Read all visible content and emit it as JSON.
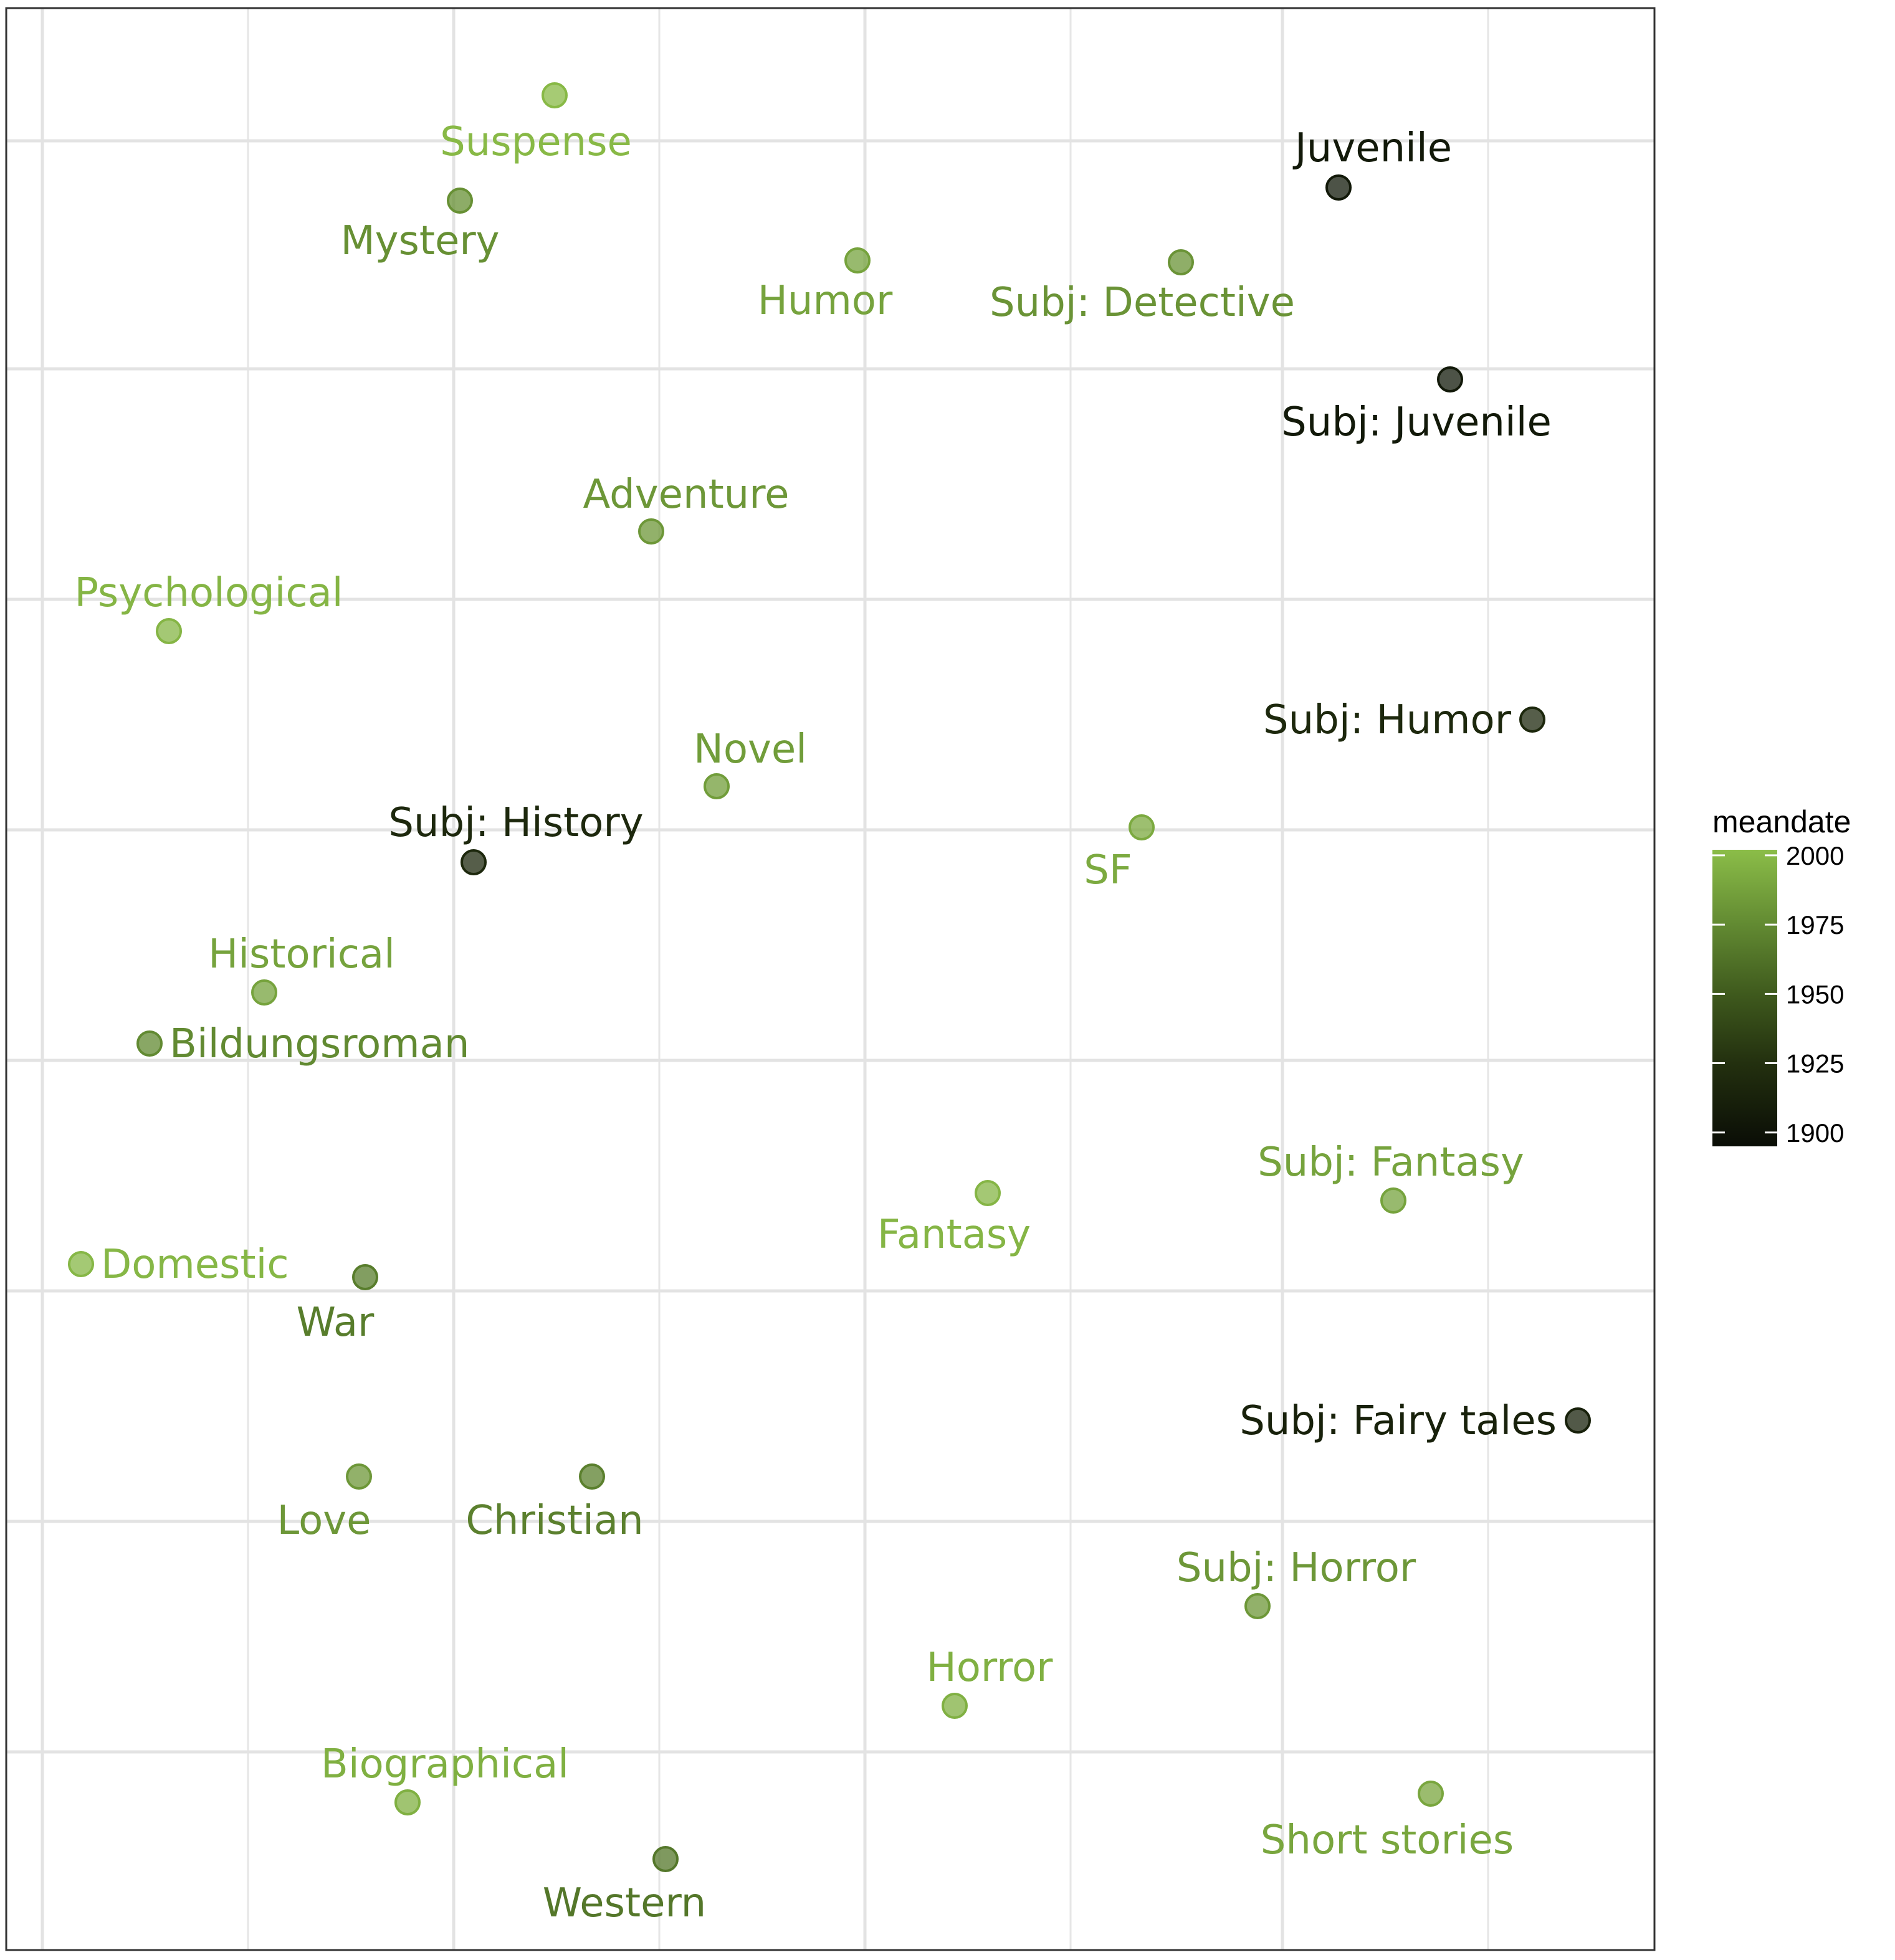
{
  "chart_data": {
    "type": "scatter",
    "title": "",
    "xlabel": "",
    "ylabel": "",
    "grid": true,
    "legend": {
      "title": "meandate",
      "placement": "right",
      "type": "colorbar",
      "range": [
        1895,
        2002
      ],
      "ticks": [
        2000,
        1975,
        1950,
        1925,
        1900
      ],
      "colors": [
        "#0a0d06",
        "#23300f",
        "#3f5a1d",
        "#628a32",
        "#8bbd48"
      ]
    },
    "xlim": [
      -0.02,
      0.01
    ],
    "ylim": [
      -0.02,
      0.01
    ],
    "points": [
      {
        "label": "Suspense",
        "x": 0.452,
        "y": 0.0475,
        "meandate": 2000
      },
      {
        "label": "Mystery",
        "x": 0.37,
        "y": 0.09,
        "meandate": 1978
      },
      {
        "label": "Juvenile",
        "x": 1.074,
        "y": 0.0965,
        "meandate": 1905
      },
      {
        "label": "Humor",
        "x": 0.687,
        "y": 0.1335,
        "meandate": 1988
      },
      {
        "label": "Subj: Detective",
        "x": 0.947,
        "y": 0.135,
        "meandate": 1980
      },
      {
        "label": "Subj: Juvenile",
        "x": 1.163,
        "y": 0.1945,
        "meandate": 1905
      },
      {
        "label": "Adventure",
        "x": 0.522,
        "y": 0.2715,
        "meandate": 1982
      },
      {
        "label": "Psychological",
        "x": 0.136,
        "y": 0.3235,
        "meandate": 1998
      },
      {
        "label": "Subj: Humor",
        "x": 1.229,
        "y": 0.3695,
        "meandate": 1918
      },
      {
        "label": "Novel",
        "x": 0.575,
        "y": 0.4025,
        "meandate": 1985
      },
      {
        "label": "SF",
        "x": 0.916,
        "y": 0.4235,
        "meandate": 1992
      },
      {
        "label": "Subj: History",
        "x": 0.381,
        "y": 0.4405,
        "meandate": 1918
      },
      {
        "label": "Historical",
        "x": 0.212,
        "y": 0.5085,
        "meandate": 1988
      },
      {
        "label": "Bildungsroman",
        "x": 0.12,
        "y": 0.5345,
        "meandate": 1975
      },
      {
        "label": "Fantasy",
        "x": 0.792,
        "y": 0.611,
        "meandate": 1998
      },
      {
        "label": "Subj: Fantasy",
        "x": 1.118,
        "y": 0.615,
        "meandate": 1988
      },
      {
        "label": "Domestic",
        "x": 0.065,
        "y": 0.648,
        "meandate": 1999
      },
      {
        "label": "War",
        "x": 0.293,
        "y": 0.6545,
        "meandate": 1968
      },
      {
        "label": "Subj: Fairy tales",
        "x": 1.266,
        "y": 0.728,
        "meandate": 1912
      },
      {
        "label": "Love",
        "x": 0.288,
        "y": 0.7565,
        "meandate": 1982
      },
      {
        "label": "Christian",
        "x": 0.475,
        "y": 0.7565,
        "meandate": 1970
      },
      {
        "label": "Subj: Horror",
        "x": 1.009,
        "y": 0.8225,
        "meandate": 1982
      },
      {
        "label": "Horror",
        "x": 0.766,
        "y": 0.874,
        "meandate": 1995
      },
      {
        "label": "Short stories",
        "x": 1.148,
        "y": 0.9195,
        "meandate": 1990
      },
      {
        "label": "Biographical",
        "x": 0.327,
        "y": 0.924,
        "meandate": 1995
      },
      {
        "label": "Western",
        "x": 0.534,
        "y": 0.9535,
        "meandate": 1965
      }
    ]
  }
}
